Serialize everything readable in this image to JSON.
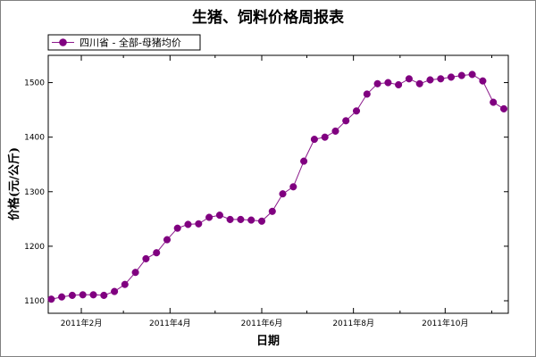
{
  "chart_data": {
    "type": "line",
    "title": "生猪、饲料价格周报表",
    "xlabel": "日期",
    "ylabel": "价格(元/公斤)",
    "legend_position": "top-left",
    "grid": false,
    "colors": {
      "series": "#8b1a8b",
      "marker": "#800080",
      "axis": "#000000"
    },
    "x_ticks": [
      "2011年2月",
      "2011年4月",
      "2011年6月",
      "2011年8月",
      "2011年10月"
    ],
    "y_ticks": [
      "1100",
      "1200",
      "1300",
      "1400",
      "1500"
    ],
    "ylim": [
      1100,
      1550
    ],
    "xlim": [
      "2011-01-10",
      "2011-11-12"
    ],
    "series": [
      {
        "name": "四川省 - 全部-母猪均价",
        "marker": "circle",
        "x": [
          "2011-01-12",
          "2011-01-19",
          "2011-01-26",
          "2011-02-02",
          "2011-02-09",
          "2011-02-16",
          "2011-02-23",
          "2011-03-02",
          "2011-03-09",
          "2011-03-16",
          "2011-03-23",
          "2011-03-30",
          "2011-04-06",
          "2011-04-13",
          "2011-04-20",
          "2011-04-27",
          "2011-05-04",
          "2011-05-11",
          "2011-05-18",
          "2011-05-25",
          "2011-06-01",
          "2011-06-08",
          "2011-06-15",
          "2011-06-22",
          "2011-06-29",
          "2011-07-06",
          "2011-07-13",
          "2011-07-20",
          "2011-07-27",
          "2011-08-03",
          "2011-08-10",
          "2011-08-17",
          "2011-08-24",
          "2011-08-31",
          "2011-09-07",
          "2011-09-14",
          "2011-09-21",
          "2011-09-28",
          "2011-10-05",
          "2011-10-12",
          "2011-10-19",
          "2011-10-26",
          "2011-11-02",
          "2011-11-09"
        ],
        "values": [
          1103,
          1107,
          1110,
          1111,
          1111,
          1110,
          1117,
          1130,
          1152,
          1177,
          1188,
          1212,
          1233,
          1240,
          1241,
          1253,
          1257,
          1249,
          1249,
          1248,
          1246,
          1264,
          1296,
          1309,
          1356,
          1396,
          1400,
          1411,
          1430,
          1448,
          1479,
          1498,
          1500,
          1496,
          1507,
          1498,
          1505,
          1507,
          1510,
          1513,
          1515,
          1503,
          1464,
          1452
        ]
      }
    ]
  }
}
